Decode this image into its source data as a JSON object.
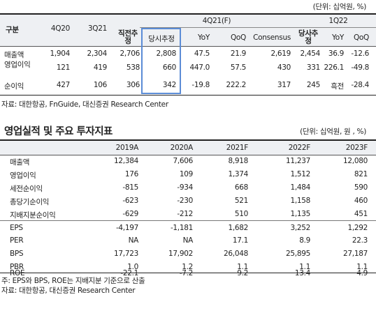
{
  "table1": {
    "unit": "(단위: 십억원, %)",
    "header": {
      "col_group_4q21": "4Q21(F)",
      "col_group_1q22": "1Q22",
      "label": "구분",
      "cols": [
        "4Q20",
        "3Q21",
        "직전추정",
        "당시추정",
        "YoY",
        "QoQ",
        "Consensus",
        "당사추정",
        "YoY",
        "QoQ"
      ]
    },
    "rows": [
      {
        "label": "매출액",
        "values": [
          "1,904",
          "2,304",
          "2,706",
          "2,808",
          "47.5",
          "21.9",
          "2,619",
          "2,454",
          "36.9",
          "-12.6"
        ]
      },
      {
        "label": "영업이익",
        "values": [
          "121",
          "419",
          "538",
          "660",
          "447.0",
          "57.5",
          "430",
          "331",
          "226.1",
          "-49.8"
        ]
      },
      {
        "label": "순이익",
        "values": [
          "427",
          "106",
          "306",
          "342",
          "-19.8",
          "222.2",
          "317",
          "245",
          "흑전",
          "-28.4"
        ]
      }
    ],
    "source": "자료: 대한항공, FnGuide, 대신증권 Research Center"
  },
  "table2": {
    "title": "영업실적 및 주요 투자지표",
    "unit": "(단위: 십억원, 원 , %)",
    "cols": [
      "2019A",
      "2020A",
      "2021F",
      "2022F",
      "2023F"
    ],
    "rows": [
      {
        "label": "매출액",
        "values": [
          "12,384",
          "7,606",
          "8,918",
          "11,237",
          "12,080"
        ]
      },
      {
        "label": "영업이익",
        "values": [
          "176",
          "109",
          "1,374",
          "1,512",
          "821"
        ]
      },
      {
        "label": "세전순이익",
        "values": [
          "-815",
          "-934",
          "668",
          "1,484",
          "590"
        ]
      },
      {
        "label": "총당기순이익",
        "values": [
          "-623",
          "-230",
          "521",
          "1,158",
          "460"
        ]
      },
      {
        "label": "지배지분순이익",
        "values": [
          "-629",
          "-212",
          "510",
          "1,135",
          "451"
        ]
      },
      {
        "label": "EPS",
        "values": [
          "-4,197",
          "-1,181",
          "1,682",
          "3,252",
          "1,292"
        ]
      },
      {
        "label": "PER",
        "values": [
          "NA",
          "NA",
          "17.1",
          "8.9",
          "22.3"
        ]
      },
      {
        "label": "BPS",
        "values": [
          "17,723",
          "17,902",
          "26,048",
          "25,895",
          "27,187"
        ]
      },
      {
        "label": "PBR",
        "values": [
          "1.0",
          "1.2",
          "1.1",
          "1.1",
          "1.1"
        ]
      },
      {
        "label": "ROE",
        "values": [
          "-22.1",
          "-7.2",
          "9.2",
          "13.4",
          "4.9"
        ]
      }
    ],
    "note": "주: EPS와 BPS, ROE는 지배지분 기준으로 산출",
    "source": "자료: 대한항공, 대신증권 Research Center"
  }
}
